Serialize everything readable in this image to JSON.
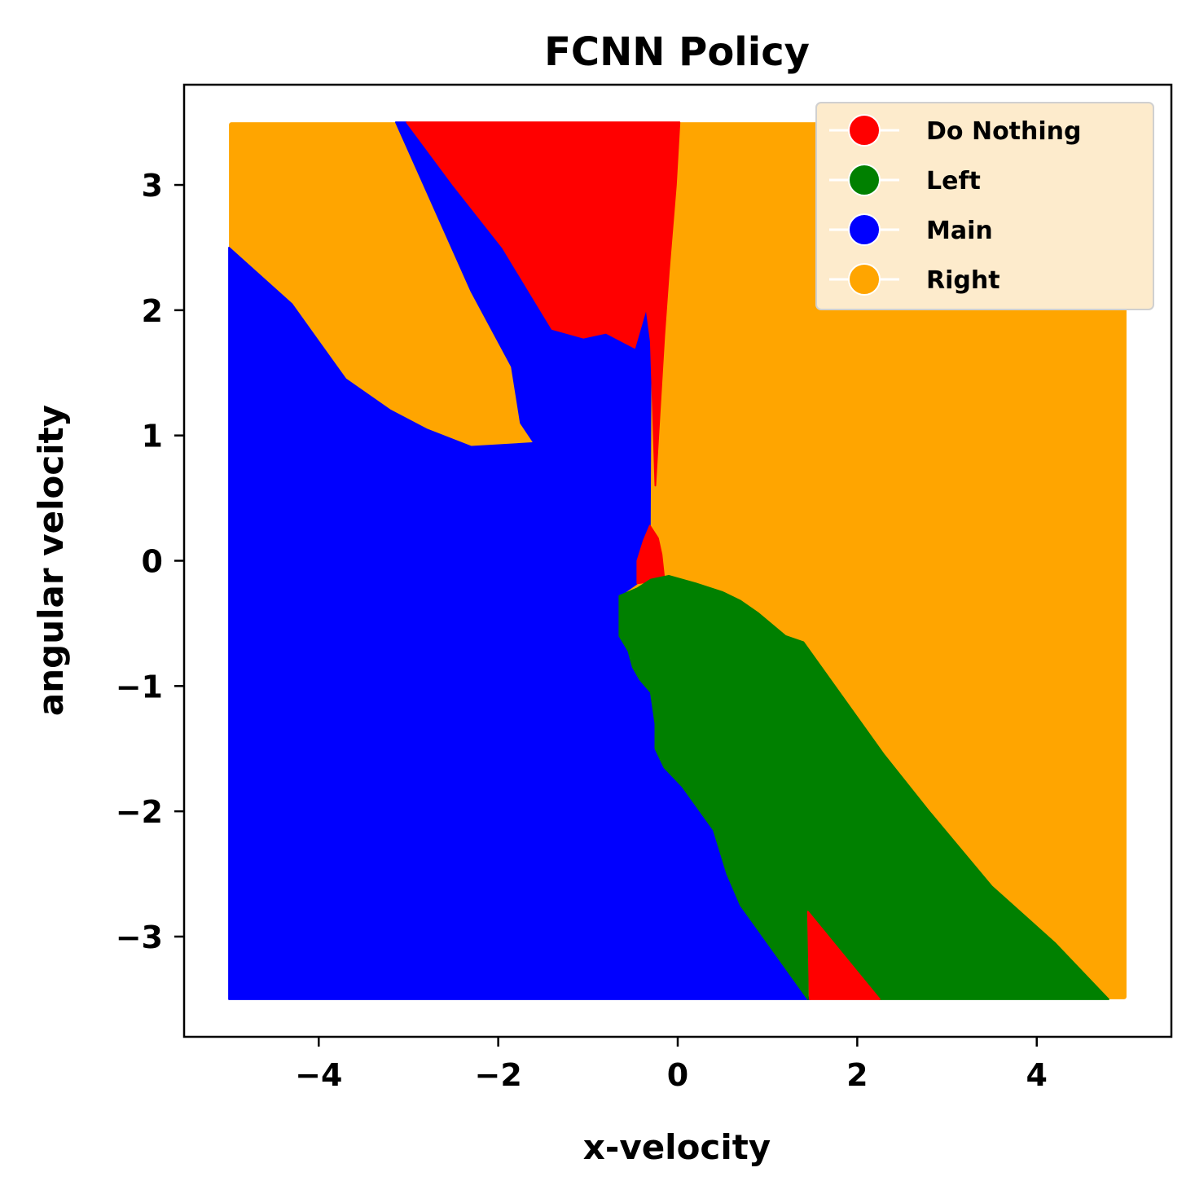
{
  "chart_data": {
    "type": "scatter",
    "title": "FCNN Policy",
    "xlabel": "x-velocity",
    "ylabel": "angular velocity",
    "xlim": [
      -5.5,
      5.5
    ],
    "ylim": [
      -3.8,
      3.8
    ],
    "grid": false,
    "x_ticks": [
      {
        "value": -4,
        "label": "−4"
      },
      {
        "value": -2,
        "label": "−2"
      },
      {
        "value": 0,
        "label": "0"
      },
      {
        "value": 2,
        "label": "2"
      },
      {
        "value": 4,
        "label": "4"
      }
    ],
    "y_ticks": [
      {
        "value": 3,
        "label": "3"
      },
      {
        "value": 2,
        "label": "2"
      },
      {
        "value": 1,
        "label": "1"
      },
      {
        "value": 0,
        "label": "0"
      },
      {
        "value": -1,
        "label": "−1"
      },
      {
        "value": -2,
        "label": "−2"
      },
      {
        "value": -3,
        "label": "−3"
      }
    ],
    "legend": {
      "placement": "top-right",
      "background": "#fdebcc",
      "entries": [
        {
          "label": "Do Nothing",
          "color": "#ff0000"
        },
        {
          "label": "Left",
          "color": "#008000"
        },
        {
          "label": "Main",
          "color": "#0000ff"
        },
        {
          "label": "Right",
          "color": "#ffa500"
        }
      ]
    },
    "sampled_domain": {
      "x": [
        -5,
        5
      ],
      "y": [
        -3.5,
        3.5
      ]
    },
    "background_class": "Right",
    "regions": [
      {
        "name": "Main",
        "color": "#0000ff",
        "polygon": [
          [
            -5.0,
            2.5
          ],
          [
            -4.3,
            2.05
          ],
          [
            -3.7,
            1.45
          ],
          [
            -3.2,
            1.2
          ],
          [
            -2.8,
            1.05
          ],
          [
            -2.3,
            0.91
          ],
          [
            -1.6,
            0.94
          ],
          [
            -1.75,
            1.1
          ],
          [
            -1.85,
            1.55
          ],
          [
            -2.3,
            2.15
          ],
          [
            -3.14,
            3.5
          ],
          [
            -3.02,
            3.5
          ],
          [
            -2.5,
            3.0
          ],
          [
            -1.95,
            2.5
          ],
          [
            -1.4,
            1.85
          ],
          [
            -1.05,
            1.78
          ],
          [
            -0.8,
            1.82
          ],
          [
            -0.48,
            1.7
          ],
          [
            -0.35,
            2.02
          ],
          [
            -0.3,
            1.75
          ],
          [
            -0.31,
            0.28
          ],
          [
            -0.28,
            0.18
          ],
          [
            -0.45,
            0.0
          ],
          [
            -0.45,
            -0.18
          ],
          [
            -0.65,
            -0.28
          ],
          [
            -0.65,
            -0.6
          ],
          [
            -0.55,
            -0.72
          ],
          [
            -0.5,
            -0.85
          ],
          [
            -0.42,
            -0.95
          ],
          [
            -0.3,
            -1.05
          ],
          [
            -0.25,
            -1.3
          ],
          [
            -0.25,
            -1.5
          ],
          [
            -0.15,
            -1.65
          ],
          [
            0.05,
            -1.8
          ],
          [
            0.4,
            -2.15
          ],
          [
            0.55,
            -2.5
          ],
          [
            0.7,
            -2.75
          ],
          [
            0.85,
            -2.9
          ],
          [
            1.05,
            -3.1
          ],
          [
            1.47,
            -3.5
          ],
          [
            -5.0,
            -3.5
          ]
        ]
      },
      {
        "name": "Do Nothing",
        "color": "#ff0000",
        "polygon": [
          [
            -3.02,
            3.5
          ],
          [
            0.02,
            3.5
          ],
          [
            -0.02,
            3.0
          ],
          [
            -0.1,
            2.3
          ],
          [
            -0.15,
            1.8
          ],
          [
            -0.25,
            0.6
          ],
          [
            -0.3,
            1.75
          ],
          [
            -0.35,
            2.02
          ],
          [
            -0.48,
            1.7
          ],
          [
            -0.8,
            1.82
          ],
          [
            -1.05,
            1.78
          ],
          [
            -1.4,
            1.85
          ],
          [
            -1.95,
            2.5
          ],
          [
            -2.5,
            3.0
          ]
        ]
      },
      {
        "name": "Do Nothing",
        "color": "#ff0000",
        "polygon": [
          [
            -0.31,
            0.28
          ],
          [
            -0.22,
            0.18
          ],
          [
            -0.18,
            0.05
          ],
          [
            -0.15,
            -0.15
          ],
          [
            -0.45,
            -0.18
          ],
          [
            -0.45,
            0.0
          ],
          [
            -0.38,
            0.16
          ]
        ]
      },
      {
        "name": "Left",
        "color": "#008000",
        "polygon": [
          [
            -0.65,
            -0.28
          ],
          [
            -0.45,
            -0.22
          ],
          [
            -0.3,
            -0.15
          ],
          [
            -0.1,
            -0.12
          ],
          [
            0.2,
            -0.18
          ],
          [
            0.5,
            -0.25
          ],
          [
            0.7,
            -0.32
          ],
          [
            0.9,
            -0.42
          ],
          [
            1.2,
            -0.6
          ],
          [
            1.4,
            -0.65
          ],
          [
            1.7,
            -0.95
          ],
          [
            2.0,
            -1.25
          ],
          [
            2.3,
            -1.55
          ],
          [
            2.8,
            -2.0
          ],
          [
            3.5,
            -2.6
          ],
          [
            4.2,
            -3.05
          ],
          [
            4.8,
            -3.5
          ],
          [
            2.25,
            -3.5
          ],
          [
            1.45,
            -2.8
          ],
          [
            1.45,
            -3.5
          ],
          [
            1.05,
            -3.1
          ],
          [
            0.85,
            -2.9
          ],
          [
            0.7,
            -2.75
          ],
          [
            0.55,
            -2.5
          ],
          [
            0.4,
            -2.15
          ],
          [
            0.05,
            -1.8
          ],
          [
            -0.15,
            -1.65
          ],
          [
            -0.25,
            -1.5
          ],
          [
            -0.25,
            -1.3
          ],
          [
            -0.3,
            -1.05
          ],
          [
            -0.42,
            -0.95
          ],
          [
            -0.5,
            -0.85
          ],
          [
            -0.55,
            -0.72
          ],
          [
            -0.65,
            -0.6
          ]
        ]
      },
      {
        "name": "Do Nothing",
        "color": "#ff0000",
        "polygon": [
          [
            1.45,
            -2.8
          ],
          [
            2.25,
            -3.5
          ],
          [
            1.47,
            -3.5
          ]
        ]
      }
    ]
  }
}
